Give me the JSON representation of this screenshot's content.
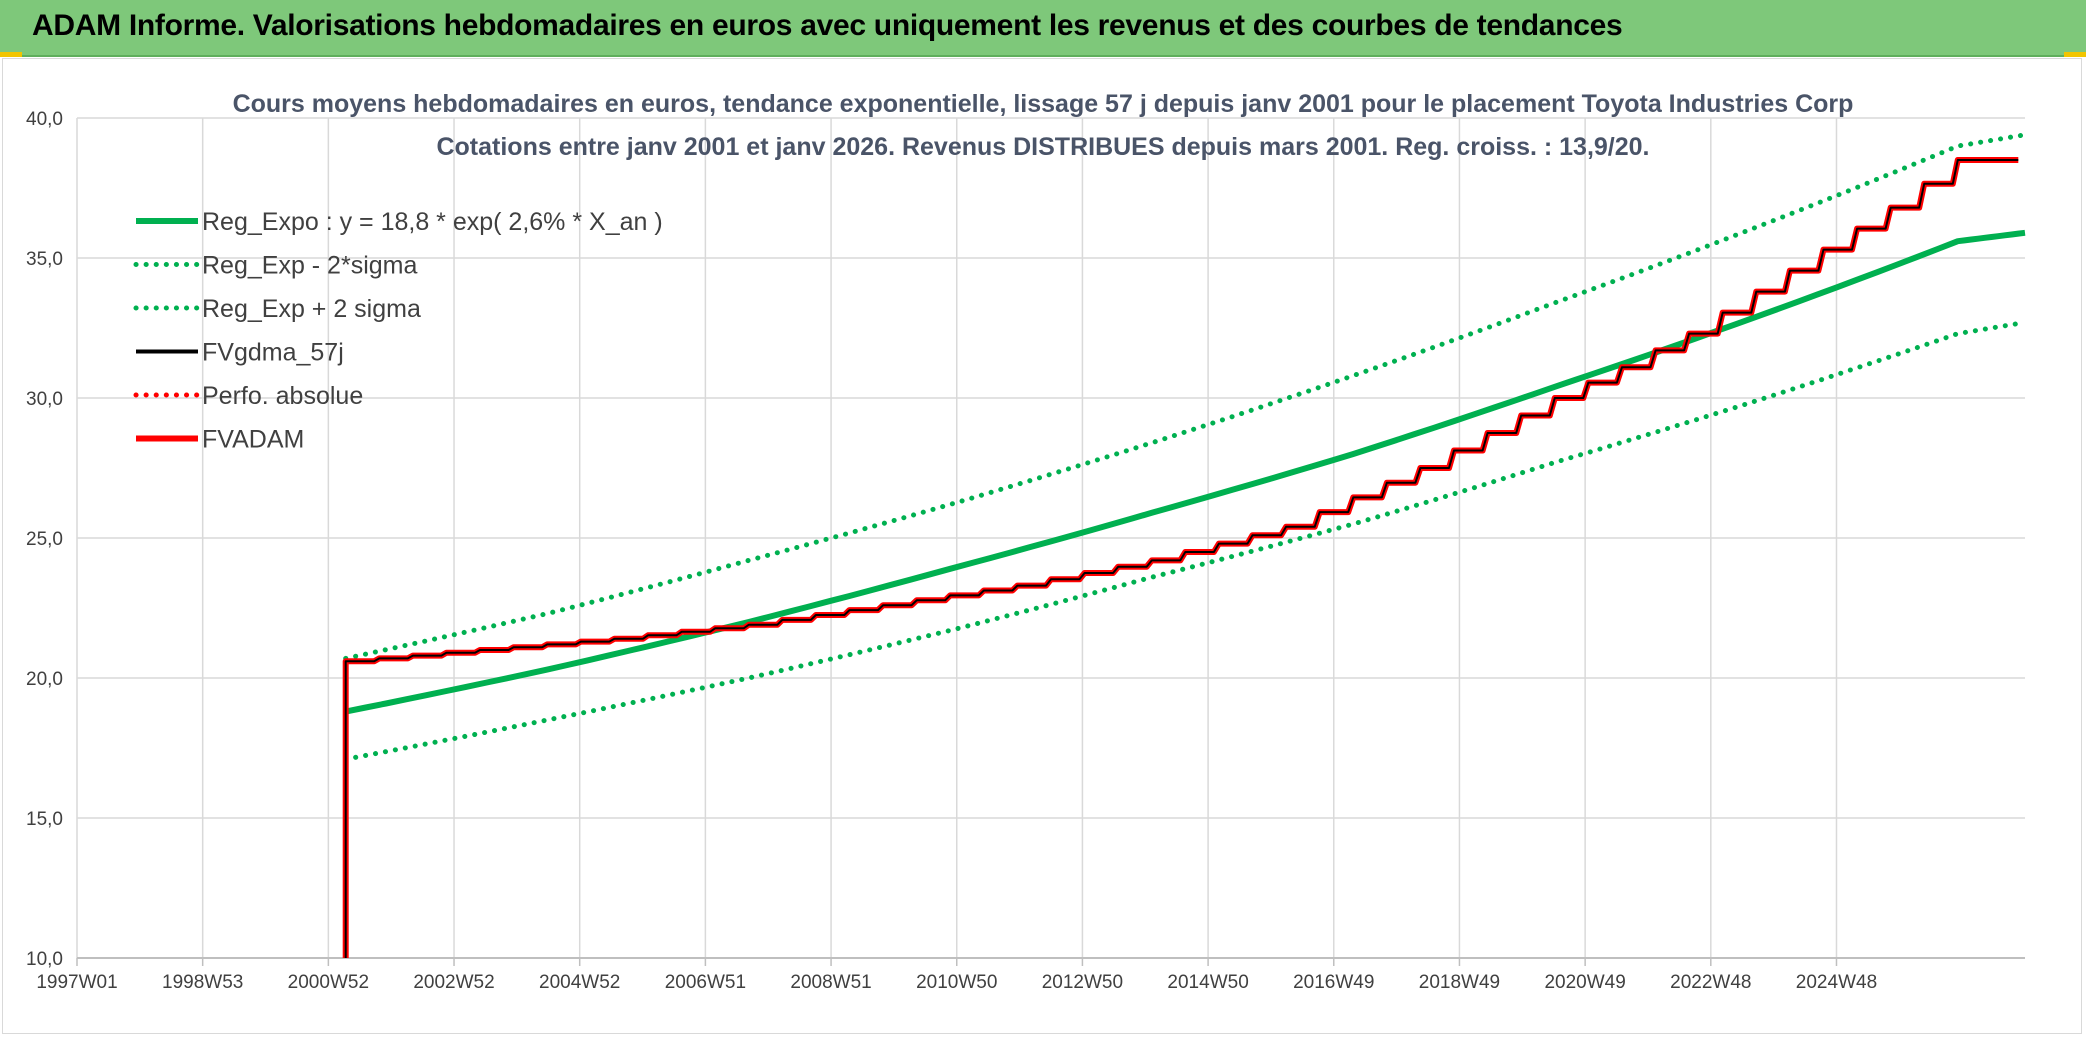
{
  "banner": {
    "title": "ADAM Informe. Valorisations hebdomadaires en euros avec uniquement les revenus et des courbes de tendances"
  },
  "colors": {
    "banner_bg": "#7ec87a",
    "trend_green": "#00b050",
    "fv_black": "#000000",
    "adam_red": "#ff0000",
    "grid": "#d9d9d9",
    "title_text": "#4a5468"
  },
  "chart_data": {
    "type": "line",
    "title": "Cours moyens hebdomadaires en euros, tendance exponentielle, lissage 57 j depuis janv 2001 pour le placement Toyota Industries Corp",
    "subtitle": "Cotations entre janv 2001 et janv 2026. Revenus DISTRIBUES depuis mars 2001. Reg. croiss. : 13,9/20.",
    "xlabel": "",
    "ylabel": "",
    "x_tick_labels": [
      "1997W01",
      "1998W53",
      "2000W52",
      "2002W52",
      "2004W52",
      "2006W51",
      "2008W51",
      "2010W50",
      "2012W50",
      "2014W50",
      "2016W49",
      "2018W49",
      "2020W49",
      "2022W48",
      "2024W48"
    ],
    "x_range_years": [
      1997.0,
      2026.0
    ],
    "ylim": [
      10,
      40
    ],
    "y_ticks": [
      "10,0",
      "15,0",
      "20,0",
      "25,0",
      "30,0",
      "35,0",
      "40,0"
    ],
    "y_tick_values": [
      10,
      15,
      20,
      25,
      30,
      35,
      40
    ],
    "grid": true,
    "legend_position": "top-left",
    "legend": [
      {
        "key": "reg_expo",
        "label": "Reg_Expo : y = 18,8 * exp( 2,6% *  X_an )",
        "color": "#00b050",
        "style": "solid"
      },
      {
        "key": "reg_minus",
        "label": "Reg_Exp - 2*sigma",
        "color": "#00b050",
        "style": "dotted"
      },
      {
        "key": "reg_plus",
        "label": "Reg_Exp + 2 sigma",
        "color": "#00b050",
        "style": "dotted"
      },
      {
        "key": "fvgdma",
        "label": "FVgdma_57j",
        "color": "#000000",
        "style": "solid"
      },
      {
        "key": "perfo",
        "label": "Perfo. absolue",
        "color": "#ff0000",
        "style": "dotted"
      },
      {
        "key": "fvadam",
        "label": "FVADAM",
        "color": "#ff0000",
        "style": "solid"
      }
    ],
    "series": [
      {
        "key": "reg_expo",
        "x_years": [
          2001.0,
          2004.0,
          2007.0,
          2010.0,
          2013.0,
          2016.0,
          2019.0,
          2022.0,
          2025.0,
          2026.0
        ],
        "values": [
          18.8,
          20.3,
          22.0,
          23.9,
          25.9,
          28.0,
          30.4,
          32.9,
          35.6,
          35.9
        ]
      },
      {
        "key": "reg_minus",
        "x_years": [
          2001.0,
          2004.0,
          2007.0,
          2010.0,
          2013.0,
          2016.0,
          2019.0,
          2022.0,
          2025.0,
          2026.0
        ],
        "values": [
          17.1,
          18.5,
          20.0,
          21.7,
          23.6,
          25.5,
          27.7,
          29.9,
          32.3,
          32.7
        ]
      },
      {
        "key": "reg_plus",
        "x_years": [
          2001.0,
          2004.0,
          2007.0,
          2010.0,
          2013.0,
          2016.0,
          2019.0,
          2022.0,
          2025.0,
          2026.0
        ],
        "values": [
          20.7,
          22.3,
          24.2,
          26.2,
          28.4,
          30.8,
          33.4,
          36.1,
          39.0,
          39.4
        ]
      },
      {
        "key": "fvadam",
        "x_years": [
          2001.0,
          2001.0,
          2003.0,
          2005.0,
          2007.0,
          2009.0,
          2011.0,
          2013.0,
          2015.0,
          2017.0,
          2019.0,
          2020.0,
          2021.0,
          2022.0,
          2023.0,
          2024.0,
          2025.0,
          2025.9
        ],
        "values": [
          10.0,
          20.6,
          21.0,
          21.4,
          21.9,
          22.6,
          23.3,
          24.2,
          25.4,
          27.5,
          30.0,
          31.1,
          32.3,
          33.8,
          35.3,
          36.8,
          38.5,
          38.5
        ]
      },
      {
        "key": "fvgdma",
        "x_years": [
          2001.0,
          2001.0,
          2003.0,
          2005.0,
          2007.0,
          2009.0,
          2011.0,
          2013.0,
          2015.0,
          2017.0,
          2019.0,
          2020.0,
          2021.0,
          2022.0,
          2023.0,
          2024.0,
          2025.0,
          2025.9
        ],
        "values": [
          10.0,
          20.6,
          21.0,
          21.4,
          21.9,
          22.6,
          23.3,
          24.2,
          25.4,
          27.5,
          30.0,
          31.1,
          32.3,
          33.8,
          35.3,
          36.8,
          38.5,
          38.5
        ]
      }
    ]
  }
}
